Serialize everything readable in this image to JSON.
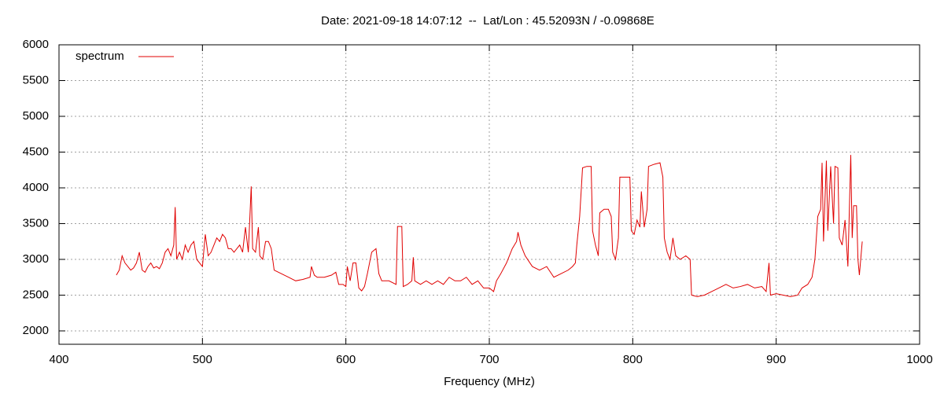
{
  "chart_data": {
    "type": "line",
    "title": "Date: 2021-09-18 14:07:12  --  Lat/Lon : 45.52093N / -0.09868E",
    "x_label": "Frequency (MHz)",
    "xlim": [
      400,
      1000
    ],
    "xticks": [
      400,
      500,
      600,
      700,
      800,
      900,
      1000
    ],
    "ylim": [
      1813,
      6000
    ],
    "yticks": [
      2000,
      2500,
      3000,
      3500,
      4000,
      4500,
      5000,
      5500,
      6000
    ],
    "grid": true,
    "legend": "top-left",
    "x": [
      440,
      442,
      444,
      446,
      448,
      450,
      452,
      454,
      456,
      458,
      460,
      462,
      464,
      466,
      468,
      470,
      472,
      474,
      476,
      478,
      480,
      481,
      482,
      484,
      486,
      488,
      490,
      492,
      494,
      496,
      498,
      500,
      502,
      504,
      506,
      508,
      510,
      512,
      514,
      516,
      518,
      520,
      522,
      524,
      526,
      528,
      530,
      532,
      534,
      535,
      537,
      539,
      540,
      542,
      544,
      546,
      548,
      550,
      555,
      560,
      565,
      570,
      575,
      576,
      578,
      580,
      585,
      590,
      593,
      595,
      598,
      600,
      601,
      603,
      605,
      607,
      609,
      611,
      613,
      615,
      618,
      621,
      623,
      625,
      630,
      635,
      636,
      639,
      640,
      643,
      646,
      647,
      648,
      652,
      656,
      660,
      664,
      668,
      672,
      676,
      680,
      684,
      688,
      692,
      696,
      700,
      703,
      705,
      708,
      712,
      716,
      719,
      720,
      722,
      725,
      730,
      735,
      740,
      745,
      750,
      755,
      758,
      760,
      761,
      763,
      765,
      768,
      771,
      772,
      774,
      776,
      777,
      780,
      783,
      785,
      786,
      788,
      790,
      791,
      795,
      798,
      799,
      801,
      803,
      805,
      806,
      808,
      810,
      811,
      815,
      819,
      821,
      822,
      824,
      826,
      828,
      830,
      833,
      837,
      840,
      841,
      845,
      850,
      855,
      860,
      865,
      870,
      875,
      880,
      885,
      890,
      893,
      895,
      896,
      900,
      905,
      910,
      915,
      918,
      922,
      925,
      927,
      929,
      931,
      932,
      933,
      935,
      936,
      938,
      940,
      941,
      943,
      944,
      946,
      948,
      950,
      952,
      953,
      954,
      956,
      957,
      958,
      960
    ],
    "series": [
      {
        "name": "spectrum",
        "color": "#e00000",
        "values": [
          2780,
          2850,
          3050,
          2950,
          2900,
          2850,
          2880,
          2950,
          3100,
          2850,
          2820,
          2900,
          2950,
          2880,
          2900,
          2870,
          2950,
          3100,
          3150,
          3050,
          3200,
          3730,
          3000,
          3100,
          3000,
          3200,
          3100,
          3200,
          3250,
          3000,
          2950,
          2900,
          3350,
          3050,
          3100,
          3200,
          3300,
          3250,
          3350,
          3300,
          3150,
          3150,
          3100,
          3150,
          3200,
          3100,
          3450,
          3100,
          4020,
          3150,
          3100,
          3450,
          3050,
          3000,
          3250,
          3250,
          3150,
          2850,
          2800,
          2750,
          2700,
          2720,
          2750,
          2900,
          2780,
          2750,
          2750,
          2780,
          2820,
          2650,
          2650,
          2620,
          2900,
          2700,
          2950,
          2950,
          2600,
          2560,
          2620,
          2800,
          3100,
          3150,
          2800,
          2700,
          2700,
          2650,
          3460,
          3460,
          2620,
          2650,
          2700,
          3030,
          2700,
          2650,
          2700,
          2650,
          2700,
          2650,
          2750,
          2700,
          2700,
          2750,
          2650,
          2700,
          2600,
          2600,
          2550,
          2700,
          2800,
          2950,
          3150,
          3250,
          3380,
          3200,
          3050,
          2900,
          2850,
          2900,
          2750,
          2800,
          2850,
          2900,
          2950,
          3200,
          3600,
          4280,
          4300,
          4300,
          3400,
          3200,
          3050,
          3650,
          3700,
          3700,
          3600,
          3100,
          3000,
          3300,
          4150,
          4150,
          4150,
          3400,
          3350,
          3550,
          3450,
          3950,
          3450,
          3700,
          4300,
          4330,
          4350,
          4150,
          3300,
          3100,
          3000,
          3300,
          3050,
          3000,
          3050,
          3000,
          2500,
          2480,
          2500,
          2550,
          2600,
          2650,
          2600,
          2620,
          2650,
          2600,
          2620,
          2550,
          2950,
          2500,
          2520,
          2500,
          2480,
          2500,
          2600,
          2650,
          2750,
          3000,
          3600,
          3700,
          4350,
          3250,
          4380,
          3400,
          4300,
          3500,
          4300,
          4280,
          3300,
          3200,
          3550,
          2900,
          4460,
          3300,
          3750,
          3750,
          3000,
          2780,
          3250
        ]
      }
    ]
  }
}
